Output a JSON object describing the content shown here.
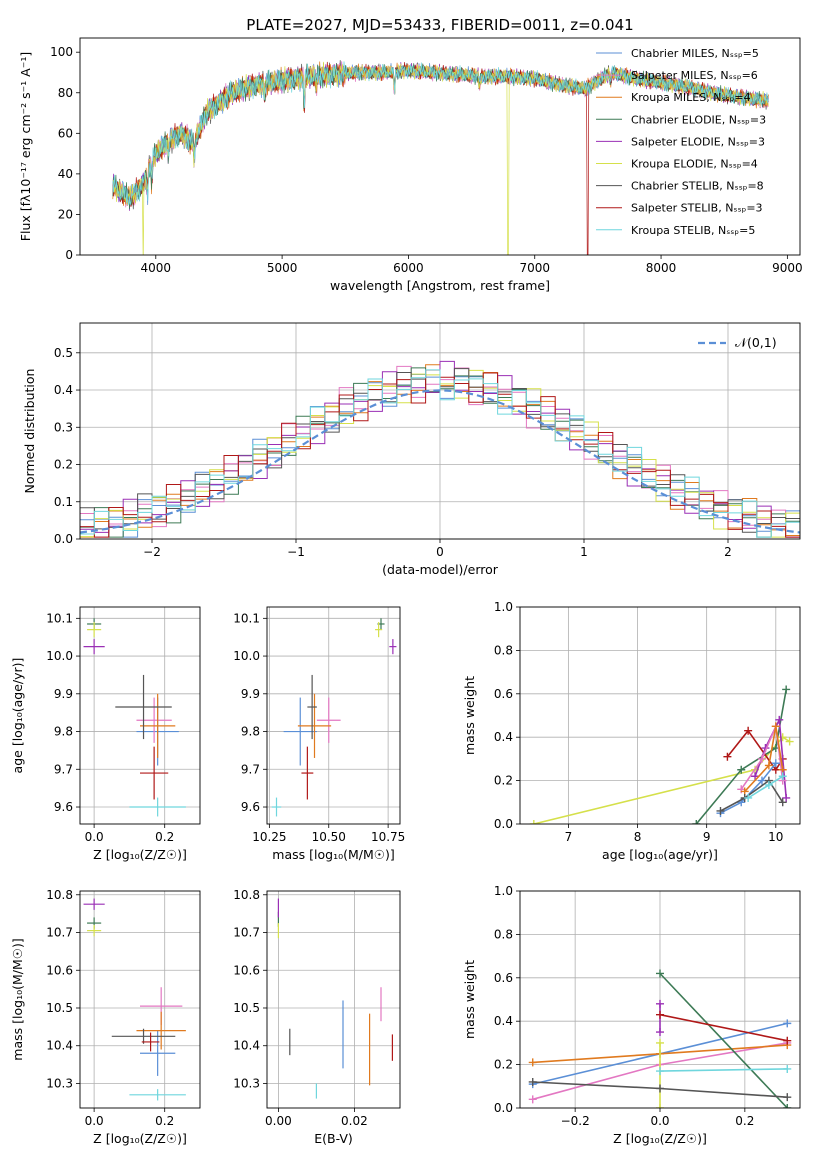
{
  "chart_data": [
    {
      "type": "line",
      "title": "PLATE=2027, MJD=53433, FIBERID=0011, z=0.041",
      "xlabel": "wavelength [Angstrom, rest frame]",
      "ylabel": "Flux [fλ10⁻¹⁷ erg cm⁻² s⁻¹ A⁻¹]",
      "xlim": [
        3400,
        9100
      ],
      "ylim": [
        0,
        107
      ],
      "xticks": [
        4000,
        5000,
        6000,
        7000,
        8000,
        9000
      ],
      "yticks": [
        0,
        20,
        40,
        60,
        80,
        100
      ],
      "legend_position": "upper-right",
      "continuum_knots": {
        "x": [
          3650,
          3700,
          3800,
          3900,
          3950,
          4000,
          4100,
          4200,
          4300,
          4400,
          4600,
          4800,
          5000,
          5200,
          5400,
          5600,
          5800,
          6000,
          6200,
          6400,
          6600,
          6800,
          7000,
          7200,
          7400,
          7600,
          7800,
          8000,
          8200,
          8400,
          8600,
          8850
        ],
        "y": [
          35,
          32,
          28,
          35,
          44,
          50,
          56,
          60,
          55,
          70,
          80,
          84,
          86,
          88,
          89,
          90,
          90,
          91,
          90,
          89,
          88,
          88,
          87,
          84,
          82,
          90,
          87,
          85,
          83,
          80,
          78,
          76
        ]
      },
      "series": [
        {
          "name": "Chabrier MILES, N_SSP=5",
          "color": "#5b8fd6",
          "drops": []
        },
        {
          "name": "Salpeter MILES, N_SSP=6",
          "color": "#e377c2",
          "drops": []
        },
        {
          "name": "Kroupa MILES, N_SSP=4",
          "color": "#e07a1f",
          "drops": []
        },
        {
          "name": "Chabrier ELODIE, N_SSP=3",
          "color": "#3d7a55",
          "drops": []
        },
        {
          "name": "Salpeter ELODIE, N_SSP=3",
          "color": "#9a2fb5",
          "drops": []
        },
        {
          "name": "Kroupa ELODIE, N_SSP=4",
          "color": "#d5e04a",
          "drops": [
            3900,
            6790
          ]
        },
        {
          "name": "Chabrier STELIB, N_SSP=8",
          "color": "#555555",
          "drops": []
        },
        {
          "name": "Salpeter STELIB, N_SSP=3",
          "color": "#b01818",
          "drops": [
            7420
          ]
        },
        {
          "name": "Kroupa STELIB, N_SSP=5",
          "color": "#6fd6dd",
          "drops": []
        }
      ]
    },
    {
      "type": "histogram",
      "xlabel": "(data-model)/error",
      "ylabel": "Normed distribution",
      "xlim": [
        -2.5,
        2.5
      ],
      "ylim": [
        0,
        0.58
      ],
      "xticks": [
        -2,
        -1,
        0,
        1,
        2
      ],
      "yticks": [
        0.0,
        0.1,
        0.2,
        0.3,
        0.4,
        0.5
      ],
      "bin_width": 0.1,
      "bin_start": -2.5,
      "reference": {
        "name": "𝒩(0,1)",
        "mean": 0,
        "sigma": 1,
        "color": "#5b8fd6"
      },
      "series_colors": [
        "#5b8fd6",
        "#e377c2",
        "#e07a1f",
        "#3d7a55",
        "#9a2fb5",
        "#d5e04a",
        "#555555",
        "#b01818",
        "#6fd6dd"
      ]
    },
    {
      "type": "errorbar",
      "xlabel": "Z [log₁₀(Z/Z☉)]",
      "ylabel": "age  [log₁₀(age/yr)]",
      "xlim": [
        -0.04,
        0.3
      ],
      "ylim": [
        9.555,
        10.13
      ],
      "xticks": [
        0.0,
        0.2
      ],
      "yticks": [
        9.6,
        9.7,
        9.8,
        9.9,
        10.0,
        10.1
      ],
      "points": [
        {
          "color": "#5b8fd6",
          "x": 0.18,
          "y": 9.8,
          "xerr": 0.06,
          "yerr": 0.09
        },
        {
          "color": "#e377c2",
          "x": 0.17,
          "y": 9.83,
          "xerr": 0.05,
          "yerr": 0.06
        },
        {
          "color": "#e07a1f",
          "x": 0.18,
          "y": 9.815,
          "xerr": 0.05,
          "yerr": 0.085
        },
        {
          "color": "#3d7a55",
          "x": 0.0,
          "y": 10.085,
          "xerr": 0.02,
          "yerr": 0.015
        },
        {
          "color": "#9a2fb5",
          "x": 0.0,
          "y": 10.025,
          "xerr": 0.03,
          "yerr": 0.02
        },
        {
          "color": "#d5e04a",
          "x": 0.0,
          "y": 10.07,
          "xerr": 0.02,
          "yerr": 0.02
        },
        {
          "color": "#555555",
          "x": 0.14,
          "y": 9.865,
          "xerr": 0.08,
          "yerr": 0.085
        },
        {
          "color": "#b01818",
          "x": 0.17,
          "y": 9.69,
          "xerr": 0.04,
          "yerr": 0.07
        },
        {
          "color": "#6fd6dd",
          "x": 0.18,
          "y": 9.6,
          "xerr": 0.08,
          "yerr": 0.025
        }
      ]
    },
    {
      "type": "errorbar",
      "xlabel": "mass [log₁₀(M/M☉)]",
      "ylabel": "",
      "xlim": [
        10.24,
        10.8
      ],
      "ylim": [
        9.555,
        10.13
      ],
      "xticks": [
        10.25,
        10.5,
        10.75
      ],
      "xtick_labels": [
        "10.25",
        "10.50",
        "10.75"
      ],
      "yticks": [
        9.6,
        9.7,
        9.8,
        9.9,
        10.0,
        10.1
      ],
      "points": [
        {
          "color": "#5b8fd6",
          "x": 10.38,
          "y": 9.8,
          "xerr": 0.07,
          "yerr": 0.09
        },
        {
          "color": "#e377c2",
          "x": 10.5,
          "y": 9.83,
          "xerr": 0.05,
          "yerr": 0.06
        },
        {
          "color": "#e07a1f",
          "x": 10.44,
          "y": 9.815,
          "xerr": 0.07,
          "yerr": 0.085
        },
        {
          "color": "#3d7a55",
          "x": 10.72,
          "y": 10.085,
          "xerr": 0.015,
          "yerr": 0.015
        },
        {
          "color": "#9a2fb5",
          "x": 10.77,
          "y": 10.025,
          "xerr": 0.015,
          "yerr": 0.02
        },
        {
          "color": "#d5e04a",
          "x": 10.71,
          "y": 10.07,
          "xerr": 0.015,
          "yerr": 0.02
        },
        {
          "color": "#555555",
          "x": 10.43,
          "y": 9.865,
          "xerr": 0.02,
          "yerr": 0.085
        },
        {
          "color": "#b01818",
          "x": 10.41,
          "y": 9.69,
          "xerr": 0.025,
          "yerr": 0.07
        },
        {
          "color": "#6fd6dd",
          "x": 10.28,
          "y": 9.6,
          "xerr": 0.02,
          "yerr": 0.025
        }
      ]
    },
    {
      "type": "line",
      "xlabel": "age  [log₁₀(age/yr)]",
      "ylabel": "mass weight",
      "xlim": [
        6.3,
        10.35
      ],
      "ylim": [
        0,
        1.0
      ],
      "xticks": [
        7,
        8,
        9,
        10
      ],
      "yticks": [
        0.0,
        0.2,
        0.4,
        0.6,
        0.8,
        1.0
      ],
      "series": [
        {
          "color": "#d5e04a",
          "x": [
            6.5,
            9.7,
            10.1,
            10.2
          ],
          "y": [
            0.0,
            0.25,
            0.4,
            0.38
          ]
        },
        {
          "color": "#3d7a55",
          "x": [
            8.85,
            9.5,
            10.0,
            10.15
          ],
          "y": [
            0.0,
            0.25,
            0.35,
            0.62
          ]
        },
        {
          "color": "#b01818",
          "x": [
            9.3,
            9.6,
            10.0,
            10.1
          ],
          "y": [
            0.31,
            0.43,
            0.25,
            0.3
          ]
        },
        {
          "color": "#9a2fb5",
          "x": [
            9.7,
            9.85,
            10.05,
            10.15
          ],
          "y": [
            0.22,
            0.35,
            0.48,
            0.12
          ]
        },
        {
          "color": "#e377c2",
          "x": [
            9.5,
            9.8,
            10.0,
            10.1
          ],
          "y": [
            0.16,
            0.3,
            0.45,
            0.2
          ]
        },
        {
          "color": "#e07a1f",
          "x": [
            9.55,
            9.9,
            10.0,
            10.1
          ],
          "y": [
            0.15,
            0.27,
            0.45,
            0.25
          ]
        },
        {
          "color": "#5b8fd6",
          "x": [
            9.2,
            9.5,
            9.8,
            10.0
          ],
          "y": [
            0.05,
            0.1,
            0.2,
            0.28
          ]
        },
        {
          "color": "#555555",
          "x": [
            9.2,
            9.55,
            9.9,
            10.1
          ],
          "y": [
            0.06,
            0.12,
            0.2,
            0.1
          ]
        },
        {
          "color": "#6fd6dd",
          "x": [
            9.6,
            9.9,
            10.1
          ],
          "y": [
            0.12,
            0.18,
            0.22
          ]
        }
      ]
    },
    {
      "type": "errorbar",
      "xlabel": "Z [log₁₀(Z/Z☉)]",
      "ylabel": "mass [log₁₀(M/M☉)]",
      "xlim": [
        -0.04,
        0.3
      ],
      "ylim": [
        10.235,
        10.81
      ],
      "xticks": [
        0.0,
        0.2
      ],
      "yticks": [
        10.3,
        10.4,
        10.5,
        10.6,
        10.7,
        10.8
      ],
      "points": [
        {
          "color": "#5b8fd6",
          "x": 0.18,
          "y": 10.38,
          "xerr": 0.05,
          "yerr": 0.06
        },
        {
          "color": "#e377c2",
          "x": 0.19,
          "y": 10.505,
          "xerr": 0.06,
          "yerr": 0.05
        },
        {
          "color": "#e07a1f",
          "x": 0.19,
          "y": 10.44,
          "xerr": 0.07,
          "yerr": 0.05
        },
        {
          "color": "#3d7a55",
          "x": 0.0,
          "y": 10.725,
          "xerr": 0.02,
          "yerr": 0.015
        },
        {
          "color": "#9a2fb5",
          "x": 0.0,
          "y": 10.775,
          "xerr": 0.03,
          "yerr": 0.015
        },
        {
          "color": "#d5e04a",
          "x": 0.0,
          "y": 10.705,
          "xerr": 0.02,
          "yerr": 0.015
        },
        {
          "color": "#555555",
          "x": 0.14,
          "y": 10.425,
          "xerr": 0.09,
          "yerr": 0.02
        },
        {
          "color": "#b01818",
          "x": 0.16,
          "y": 10.41,
          "xerr": 0.025,
          "yerr": 0.025
        },
        {
          "color": "#6fd6dd",
          "x": 0.18,
          "y": 10.27,
          "xerr": 0.08,
          "yerr": 0.015
        }
      ]
    },
    {
      "type": "errorbar",
      "xlabel": "E(B-V)",
      "ylabel": "",
      "xlim": [
        -0.003,
        0.032
      ],
      "ylim": [
        10.235,
        10.81
      ],
      "xticks": [
        0.0,
        0.02
      ],
      "xtick_labels": [
        "0.00",
        "0.02"
      ],
      "yticks": [
        10.3,
        10.4,
        10.5,
        10.6,
        10.7,
        10.8
      ],
      "points": [
        {
          "color": "#5b8fd6",
          "x": 0.017,
          "y": 10.43,
          "xerr": 0,
          "yerr": 0.09
        },
        {
          "color": "#e377c2",
          "x": 0.027,
          "y": 10.51,
          "xerr": 0,
          "yerr": 0.045
        },
        {
          "color": "#e07a1f",
          "x": 0.024,
          "y": 10.39,
          "xerr": 0,
          "yerr": 0.095
        },
        {
          "color": "#3d7a55",
          "x": 0.0,
          "y": 10.735,
          "xerr": 0,
          "yerr": 0.02
        },
        {
          "color": "#9a2fb5",
          "x": 0.0,
          "y": 10.765,
          "xerr": 0,
          "yerr": 0.025
        },
        {
          "color": "#d5e04a",
          "x": 0.0,
          "y": 10.705,
          "xerr": 0,
          "yerr": 0.02
        },
        {
          "color": "#555555",
          "x": 0.003,
          "y": 10.41,
          "xerr": 0,
          "yerr": 0.035
        },
        {
          "color": "#b01818",
          "x": 0.03,
          "y": 10.395,
          "xerr": 0,
          "yerr": 0.035
        },
        {
          "color": "#6fd6dd",
          "x": 0.01,
          "y": 10.28,
          "xerr": 0,
          "yerr": 0.02
        }
      ]
    },
    {
      "type": "line",
      "xlabel": "Z [log₁₀(Z/Z☉)]",
      "ylabel": "mass weight",
      "xlim": [
        -0.33,
        0.33
      ],
      "ylim": [
        0,
        1.0
      ],
      "xticks": [
        -0.2,
        0.0,
        0.2
      ],
      "yticks": [
        0.0,
        0.2,
        0.4,
        0.6,
        0.8,
        1.0
      ],
      "series": [
        {
          "color": "#5b8fd6",
          "x": [
            -0.3,
            0.0,
            0.3
          ],
          "y": [
            0.11,
            0.25,
            0.39
          ]
        },
        {
          "color": "#e377c2",
          "x": [
            -0.3,
            0.0,
            0.3
          ],
          "y": [
            0.04,
            0.2,
            0.3
          ]
        },
        {
          "color": "#e07a1f",
          "x": [
            -0.3,
            0.0,
            0.3
          ],
          "y": [
            0.21,
            0.25,
            0.29
          ]
        },
        {
          "color": "#3d7a55",
          "x": [
            0.0,
            0.3
          ],
          "y": [
            0.62,
            0.0
          ]
        },
        {
          "color": "#9a2fb5",
          "x": [
            0.0,
            0.0
          ],
          "y": [
            0.48,
            0.35
          ]
        },
        {
          "color": "#d5e04a",
          "x": [
            0.0,
            0.0
          ],
          "y": [
            0.0,
            0.3
          ]
        },
        {
          "color": "#555555",
          "x": [
            -0.3,
            0.0,
            0.3
          ],
          "y": [
            0.12,
            0.09,
            0.05
          ]
        },
        {
          "color": "#b01818",
          "x": [
            0.0,
            0.3
          ],
          "y": [
            0.43,
            0.31
          ]
        },
        {
          "color": "#6fd6dd",
          "x": [
            0.0,
            0.3
          ],
          "y": [
            0.17,
            0.18
          ]
        }
      ]
    }
  ]
}
